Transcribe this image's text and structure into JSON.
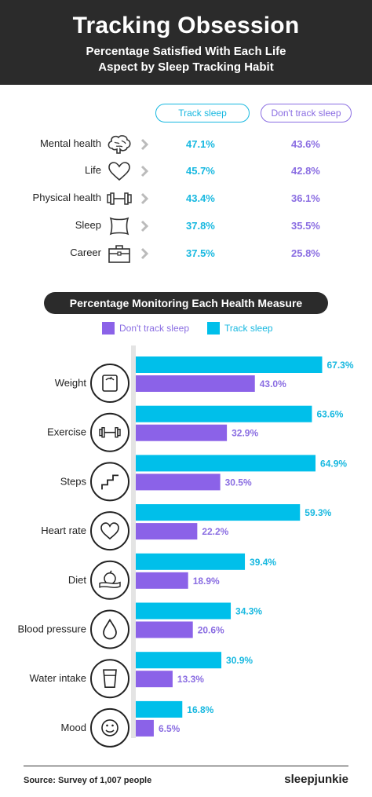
{
  "header": {
    "title": "Tracking Obsession",
    "subtitle_line1": "Percentage Satisfied With Each Life",
    "subtitle_line2": "Aspect by Sleep Tracking Habit"
  },
  "satisfaction": {
    "track_label": "Track sleep",
    "notrack_label": "Don't track sleep",
    "rows": [
      {
        "label": "Mental health",
        "icon": "brain-icon",
        "track": "47.1%",
        "notrack": "43.6%"
      },
      {
        "label": "Life",
        "icon": "heart-icon",
        "track": "45.7%",
        "notrack": "42.8%"
      },
      {
        "label": "Physical health",
        "icon": "dumbbell-icon",
        "track": "43.4%",
        "notrack": "36.1%"
      },
      {
        "label": "Sleep",
        "icon": "pillow-icon",
        "track": "37.8%",
        "notrack": "35.5%"
      },
      {
        "label": "Career",
        "icon": "briefcase-icon",
        "track": "37.5%",
        "notrack": "25.8%"
      }
    ]
  },
  "monitoring": {
    "title": "Percentage Monitoring Each Health Measure",
    "legend_notrack": "Don't track sleep",
    "legend_track": "Track sleep"
  },
  "colors": {
    "track": "#00bfea",
    "notrack": "#8b62e8",
    "track_text": "#17b8e0",
    "notrack_text": "#8a6de2",
    "dark": "#2b2b2b"
  },
  "chart_data": {
    "type": "bar",
    "orientation": "horizontal",
    "title": "Percentage Monitoring Each Health Measure",
    "categories": [
      "Weight",
      "Exercise",
      "Steps",
      "Heart rate",
      "Diet",
      "Blood pressure",
      "Water intake",
      "Mood"
    ],
    "icons": [
      "scale-icon",
      "dumbbell-icon",
      "stairs-icon",
      "heart-icon",
      "apple-tape-icon",
      "drop-icon",
      "glass-icon",
      "smiley-icon"
    ],
    "series": [
      {
        "name": "Track sleep",
        "values": [
          67.3,
          63.6,
          64.9,
          59.3,
          39.4,
          34.3,
          30.9,
          16.8
        ]
      },
      {
        "name": "Don't track sleep",
        "values": [
          43.0,
          32.9,
          30.5,
          22.2,
          18.9,
          20.6,
          13.3,
          6.5
        ]
      }
    ],
    "value_labels": {
      "track": [
        "67.3%",
        "63.6%",
        "64.9%",
        "59.3%",
        "39.4%",
        "34.3%",
        "30.9%",
        "16.8%"
      ],
      "notrack": [
        "43.0%",
        "32.9%",
        "30.5%",
        "22.2%",
        "18.9%",
        "20.6%",
        "13.3%",
        "6.5%"
      ]
    },
    "xlim": [
      0,
      100
    ],
    "grid": false,
    "legend": "top"
  },
  "footer": {
    "source": "Source: Survey of 1,007 people",
    "brand": "sleepjunkie"
  }
}
